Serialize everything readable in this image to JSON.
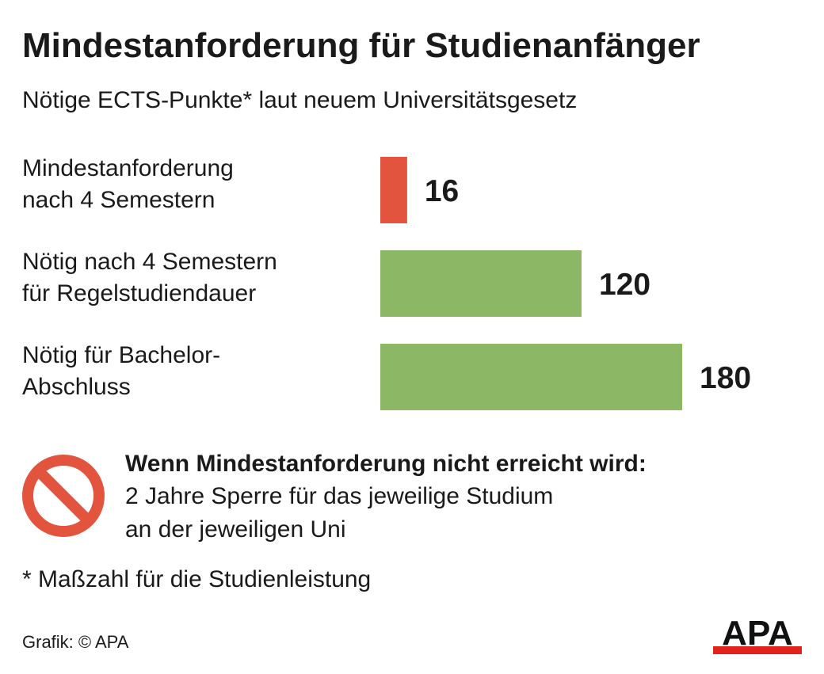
{
  "title": "Mindestanforderung für Studienanfänger",
  "subtitle": "Nötige ECTS-Punkte* laut neuem Universitätsgesetz",
  "chart_data": {
    "type": "bar",
    "orientation": "horizontal",
    "categories": [
      [
        "Mindestanforderung",
        "nach 4 Semestern"
      ],
      [
        "Nötig nach 4 Semestern",
        "für Regelstudiendauer"
      ],
      [
        "Nötig für Bachelor-",
        "Abschluss"
      ]
    ],
    "values": [
      16,
      120,
      180
    ],
    "value_labels": [
      "16",
      "120",
      "180"
    ],
    "bar_colors": [
      "#e2543d",
      "#8cb865",
      "#8cb865"
    ],
    "xlim": [
      0,
      180
    ],
    "grid": false,
    "legend": "none"
  },
  "warning": {
    "icon": "prohibited-icon",
    "color": "#e2543d",
    "title": "Wenn Mindestanforderung nicht erreicht wird:",
    "lines": [
      "2 Jahre Sperre für das jeweilige Studium",
      "an der jeweiligen Uni"
    ]
  },
  "footnote": "* Maßzahl für die Studienleistung",
  "credit": "Grafik: © APA",
  "logo": {
    "text": "APA",
    "accent": "#e2231a"
  }
}
